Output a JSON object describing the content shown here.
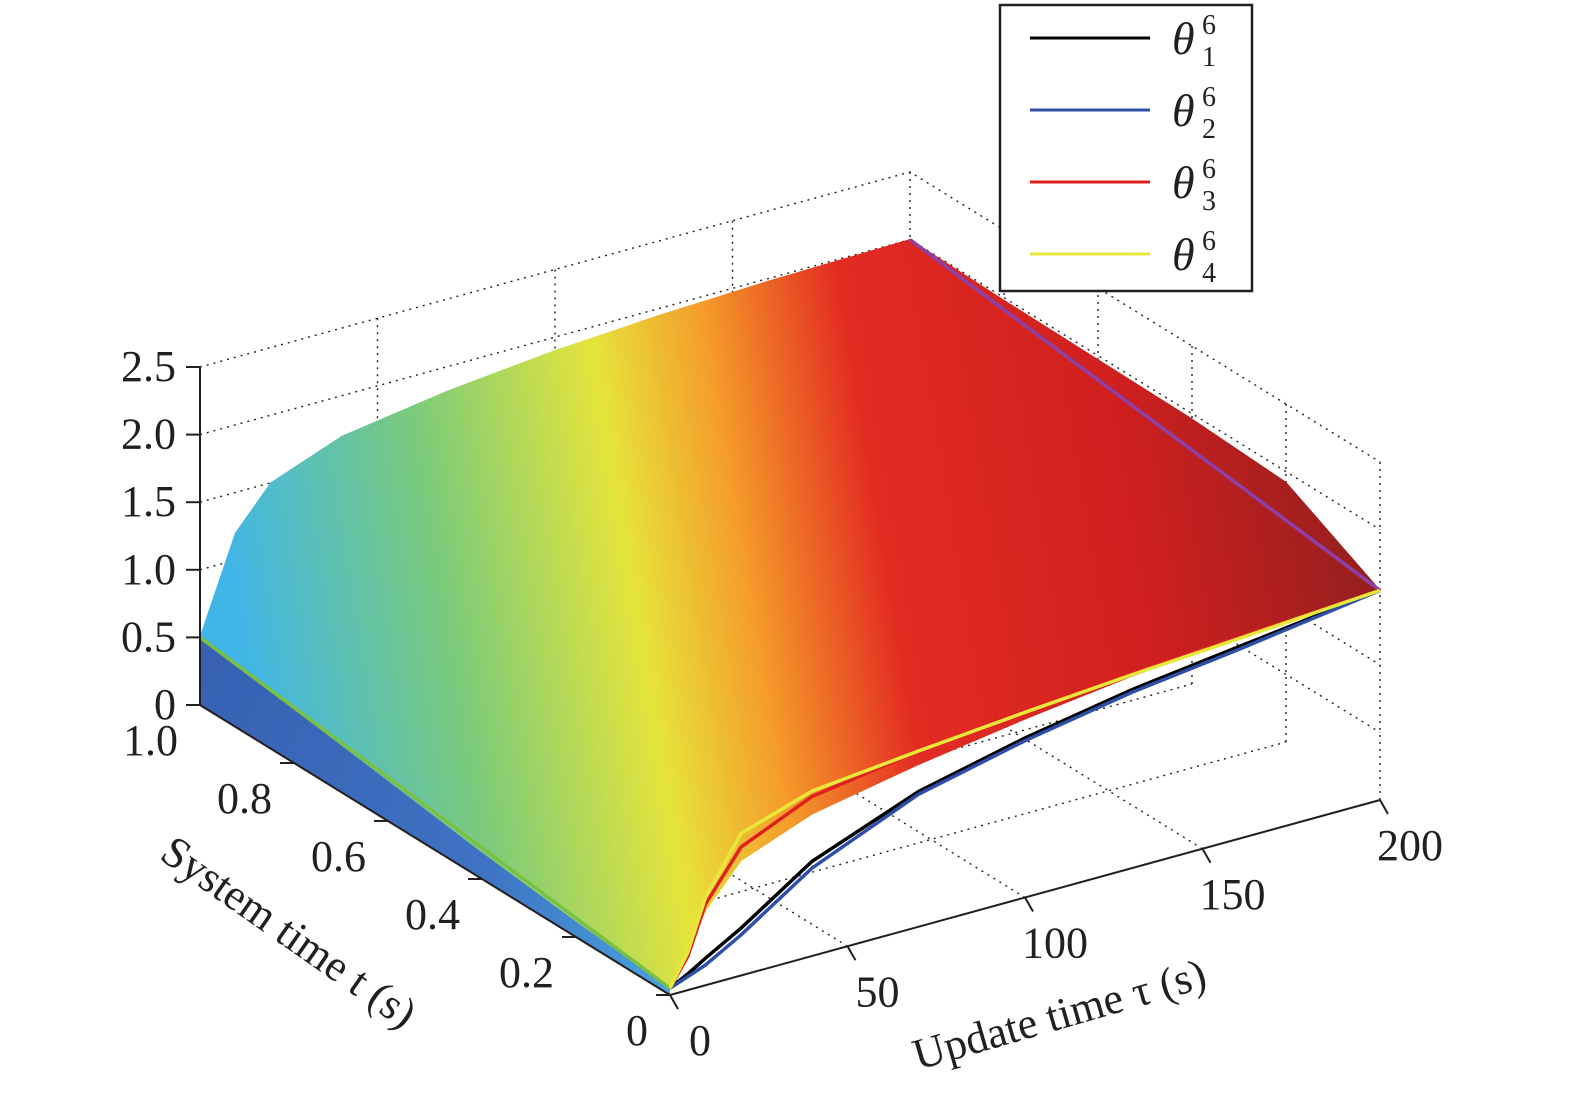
{
  "chart_data": {
    "type": "surface",
    "xlabel": "Update time τ (s)",
    "ylabel": "System time t (s)",
    "zlabel": "",
    "x_ticks": [
      "0",
      "50",
      "100",
      "150",
      "200"
    ],
    "y_ticks": [
      "0",
      "0.2",
      "0.4",
      "0.6",
      "0.8",
      "1.0"
    ],
    "z_ticks": [
      "0",
      "0.5",
      "1.0",
      "1.5",
      "2.0",
      "2.5"
    ],
    "xlim": [
      0,
      200
    ],
    "ylim": [
      0,
      1.0
    ],
    "zlim": [
      0,
      2.5
    ],
    "grid": true,
    "legend_position": "top-right",
    "legend": [
      {
        "symbol": "θ",
        "sup": "6",
        "sub": "1",
        "color": "#000000"
      },
      {
        "symbol": "θ",
        "sup": "6",
        "sub": "2",
        "color": "#2e4fa8"
      },
      {
        "symbol": "θ",
        "sup": "6",
        "sub": "3",
        "color": "#e0201f"
      },
      {
        "symbol": "θ",
        "sup": "6",
        "sub": "4",
        "color": "#e8e83a"
      }
    ],
    "surface_tau": [
      0,
      10,
      20,
      40,
      70,
      100,
      130,
      160,
      200
    ],
    "surface_t": [
      0,
      0.2,
      0.4,
      0.6,
      0.8,
      1.0
    ],
    "surface_z": [
      [
        0.05,
        0.55,
        0.85,
        1.05,
        1.2,
        1.32,
        1.42,
        1.48,
        1.55
      ],
      [
        0.12,
        0.7,
        1.1,
        1.4,
        1.6,
        1.72,
        1.8,
        1.86,
        1.92
      ],
      [
        0.2,
        0.9,
        1.3,
        1.55,
        1.72,
        1.82,
        1.88,
        1.92,
        1.96
      ],
      [
        0.3,
        1.05,
        1.4,
        1.62,
        1.78,
        1.86,
        1.91,
        1.94,
        1.97
      ],
      [
        0.4,
        1.1,
        1.45,
        1.66,
        1.8,
        1.88,
        1.93,
        1.96,
        1.98
      ],
      [
        0.5,
        1.2,
        1.5,
        1.7,
        1.82,
        1.9,
        1.95,
        1.98,
        2.0
      ]
    ],
    "series": [
      {
        "name": "θ16",
        "t": 0,
        "tau": [
          0,
          5,
          10,
          20,
          40,
          70,
          100,
          130,
          160,
          200
        ],
        "z": [
          0.05,
          0.12,
          0.2,
          0.35,
          0.7,
          1.0,
          1.18,
          1.32,
          1.42,
          1.55
        ]
      },
      {
        "name": "θ26",
        "t": 0,
        "tau": [
          0,
          5,
          10,
          20,
          40,
          70,
          100,
          130,
          160,
          200
        ],
        "z": [
          0.05,
          0.1,
          0.15,
          0.3,
          0.65,
          0.98,
          1.16,
          1.3,
          1.4,
          1.55
        ]
      },
      {
        "name": "θ36",
        "t": 0,
        "tau": [
          0,
          5,
          10,
          20,
          40,
          70,
          100,
          130,
          160,
          200
        ],
        "z": [
          0.05,
          0.25,
          0.6,
          0.95,
          1.18,
          1.3,
          1.38,
          1.44,
          1.49,
          1.55
        ]
      },
      {
        "name": "θ46",
        "t": 0,
        "tau": [
          0,
          5,
          10,
          20,
          40,
          70,
          100,
          130,
          160,
          200
        ],
        "z": [
          0.05,
          0.28,
          0.65,
          1.05,
          1.22,
          1.3,
          1.37,
          1.43,
          1.48,
          1.55
        ]
      }
    ],
    "edge_lines": [
      {
        "color": "#7ac143",
        "tau": 0,
        "t": [
          0,
          1.0
        ],
        "z": [
          0.05,
          0.5
        ]
      },
      {
        "color": "#8e3fa8",
        "tau": 200,
        "t": [
          0,
          1.0
        ],
        "z": [
          1.55,
          2.0
        ]
      }
    ]
  }
}
